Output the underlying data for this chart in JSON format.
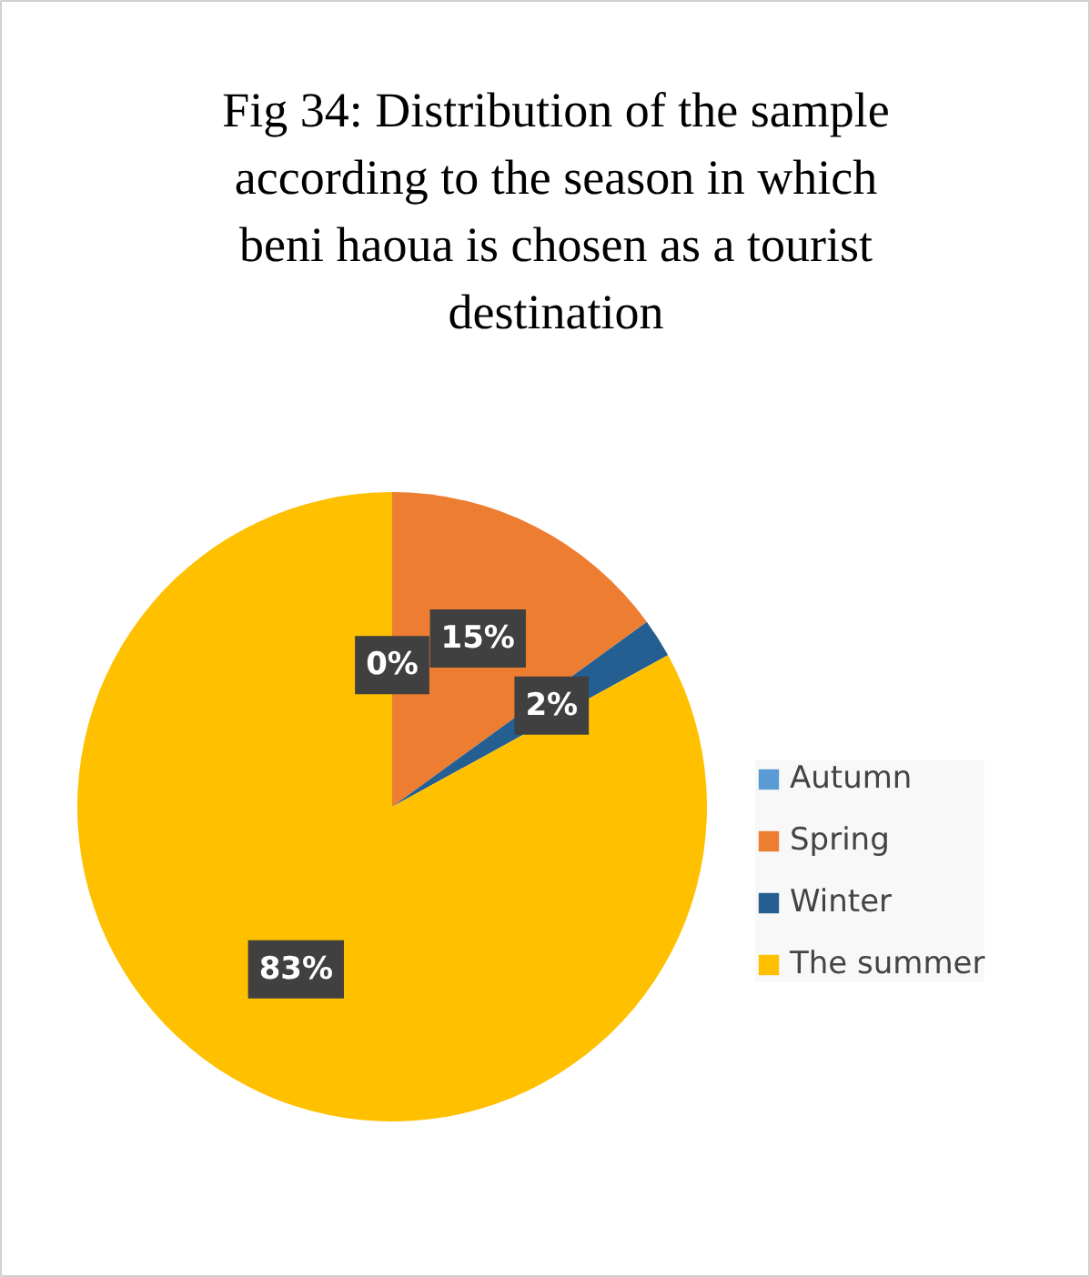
{
  "chart_data": {
    "type": "pie",
    "title": "Fig 34: Distribution of the sample according to the season in which beni haoua is chosen as a tourist destination",
    "categories": [
      "Autumn",
      "Spring",
      "Winter",
      "The summer"
    ],
    "values": [
      0,
      15,
      2,
      83
    ],
    "colors": [
      "#5b9bd5",
      "#ed7d31",
      "#255e91",
      "#ffc000"
    ],
    "value_labels": [
      "0%",
      "15%",
      "2%",
      "83%"
    ],
    "legend": "right"
  }
}
